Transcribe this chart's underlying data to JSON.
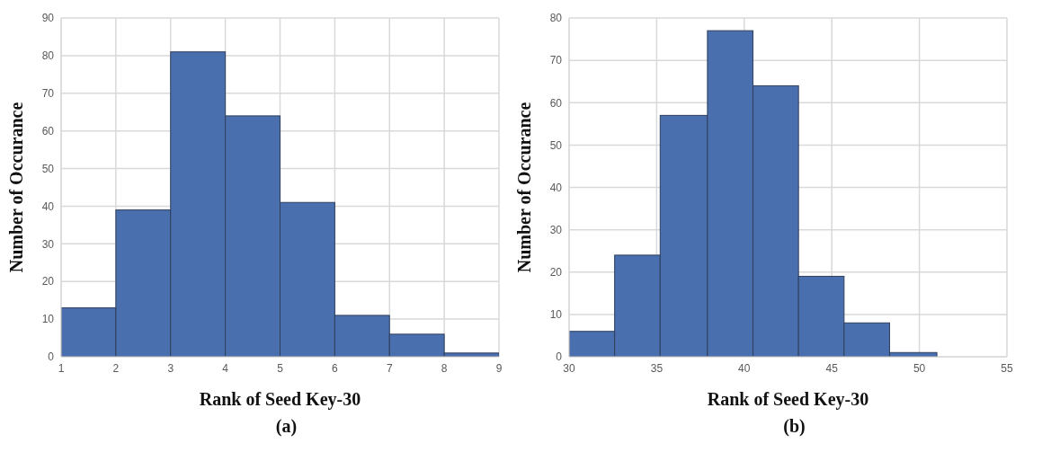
{
  "chart_data": [
    {
      "type": "histogram",
      "xlabel": "Rank of Seed Key-30",
      "ylabel": "Number of Occurance",
      "annotations": [
        "(a)"
      ],
      "bins": [
        1,
        2,
        3,
        4,
        5,
        6,
        7,
        8,
        9
      ],
      "values": [
        13,
        39,
        81,
        64,
        41,
        11,
        6,
        1
      ],
      "color": "#4a6fae",
      "xlim": [
        1,
        9
      ],
      "xticks": [
        1,
        2,
        3,
        4,
        5,
        6,
        7,
        8,
        9
      ],
      "ylim": [
        0,
        90
      ],
      "yticks": [
        0,
        10,
        20,
        30,
        40,
        50,
        60,
        70,
        80,
        90
      ],
      "grid": true
    },
    {
      "type": "histogram",
      "xlabel": "Rank of Seed Key-30",
      "ylabel": "Number of Occurance",
      "annotations": [
        "(b)"
      ],
      "bins": [
        30,
        32.6,
        35.2,
        37.9,
        40.5,
        43.1,
        45.7,
        48.3,
        51
      ],
      "values": [
        6,
        24,
        57,
        77,
        64,
        19,
        8,
        1
      ],
      "color": "#4a6fae",
      "xlim": [
        30,
        55
      ],
      "xticks": [
        30,
        35,
        40,
        45,
        50,
        55
      ],
      "ylim": [
        0,
        80
      ],
      "yticks": [
        0,
        10,
        20,
        30,
        40,
        50,
        60,
        70,
        80
      ],
      "grid": true
    }
  ]
}
